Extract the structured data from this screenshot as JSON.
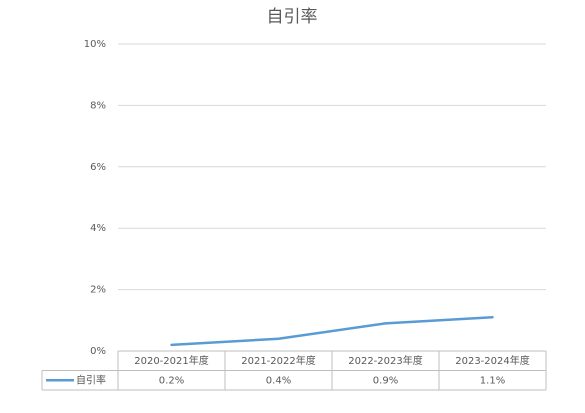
{
  "chart_data": {
    "type": "line",
    "title": "自引率",
    "categories": [
      "2020-2021年度",
      "2021-2022年度",
      "2022-2023年度",
      "2023-2024年度"
    ],
    "series": [
      {
        "name": "自引率",
        "color": "#5b9bd5",
        "values": [
          0.2,
          0.4,
          0.9,
          1.1
        ],
        "value_labels": [
          "0.2%",
          "0.4%",
          "0.9%",
          "1.1%"
        ]
      }
    ],
    "ylim": [
      0,
      10
    ],
    "yticks": [
      {
        "value": 0,
        "label": "0%"
      },
      {
        "value": 2,
        "label": "2%"
      },
      {
        "value": 4,
        "label": "4%"
      },
      {
        "value": 6,
        "label": "6%"
      },
      {
        "value": 8,
        "label": "8%"
      },
      {
        "value": 10,
        "label": "10%"
      }
    ],
    "grid": true,
    "data_table": true
  }
}
